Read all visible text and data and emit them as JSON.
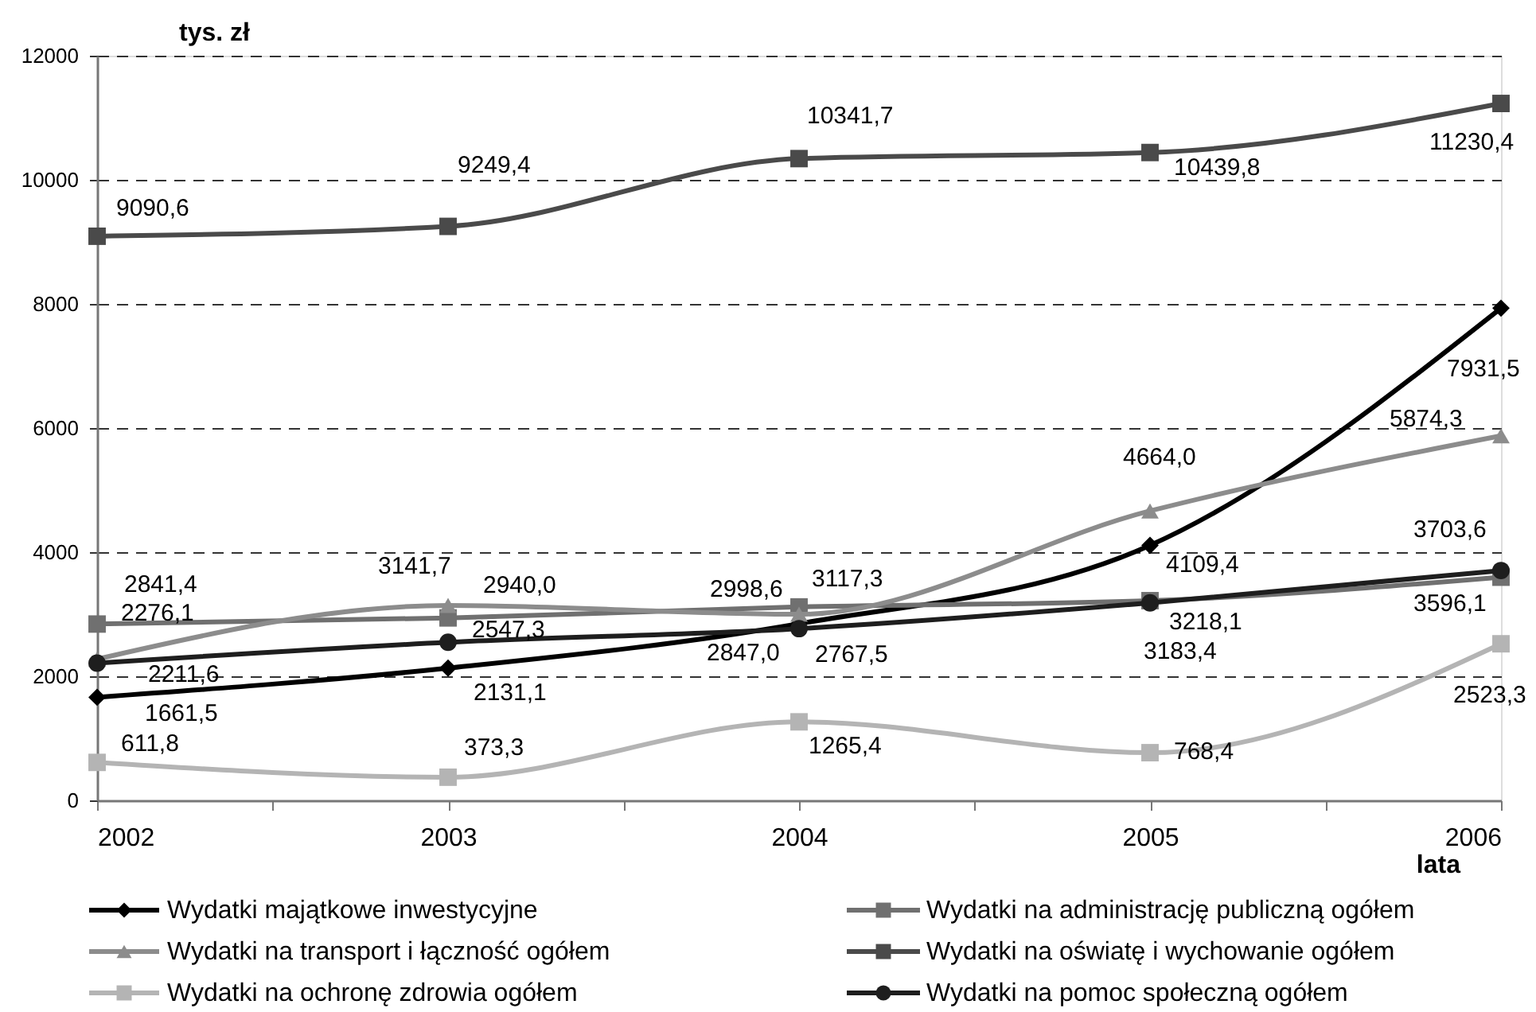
{
  "chart_data": {
    "type": "line",
    "xlabel": "lata",
    "ylabel": "tys. zł",
    "x": [
      2002,
      2003,
      2004,
      2005,
      2006
    ],
    "xlim": [
      2002,
      2006
    ],
    "xticks": [
      2002,
      {
        "value": 2002.5,
        "label": null
      },
      2003,
      {
        "value": 2003.5,
        "label": null
      },
      2004,
      {
        "value": 2004.5,
        "label": null
      },
      2005,
      {
        "value": 2005.5,
        "label": null
      },
      2006
    ],
    "ylim": [
      0,
      12000
    ],
    "yticks": [
      0,
      2000,
      4000,
      6000,
      8000,
      10000,
      12000
    ],
    "grid": "y",
    "legend": "bottom",
    "series": [
      {
        "name": "Wydatki majątkowe inwestycyjne",
        "color": "#000000",
        "marker": "diamond",
        "values": [
          1661.5,
          2131.1,
          2847.0,
          4109.4,
          7931.5
        ],
        "value_labels": [
          "1661,5",
          "2131,1",
          "2847,0",
          "4109,4",
          "7931,5"
        ]
      },
      {
        "name": "Wydatki na administrację publiczną ogółem",
        "color": "#707070",
        "marker": "square",
        "values": [
          2841.4,
          2940.0,
          3117.3,
          3218.1,
          3596.1
        ],
        "value_labels": [
          "2841,4",
          "2940,0",
          "3117,3",
          "3218,1",
          "3596,1"
        ]
      },
      {
        "name": "Wydatki na transport i łączność ogółem",
        "color": "#8c8c8c",
        "marker": "triangle",
        "values": [
          2276.1,
          3141.7,
          2998.6,
          4664.0,
          5874.3
        ],
        "value_labels": [
          "2276,1",
          "3141,7",
          "2998,6",
          "4664,0",
          "5874,3"
        ]
      },
      {
        "name": "Wydatki na oświatę i wychowanie ogółem",
        "color": "#4a4a4a",
        "marker": "square",
        "values": [
          9090.6,
          9249.4,
          10341.7,
          10439.8,
          11230.4
        ],
        "value_labels": [
          "9090,6",
          "9249,4",
          "10341,7",
          "10439,8",
          "11230,4"
        ]
      },
      {
        "name": "Wydatki na ochronę zdrowia ogółem",
        "color": "#b4b4b4",
        "marker": "square",
        "values": [
          611.8,
          373.3,
          1265.4,
          768.4,
          2523.3
        ],
        "value_labels": [
          "611,8",
          "373,3",
          "1265,4",
          "768,4",
          "2523,3"
        ]
      },
      {
        "name": "Wydatki na pomoc społeczną ogółem",
        "color": "#1e1e1e",
        "marker": "circle",
        "values": [
          2211.6,
          2547.3,
          2767.5,
          3183.4,
          3703.6
        ],
        "value_labels": [
          "2211,6",
          "2547,3",
          "2767,5",
          "3183,4",
          "3703,6"
        ]
      }
    ]
  }
}
